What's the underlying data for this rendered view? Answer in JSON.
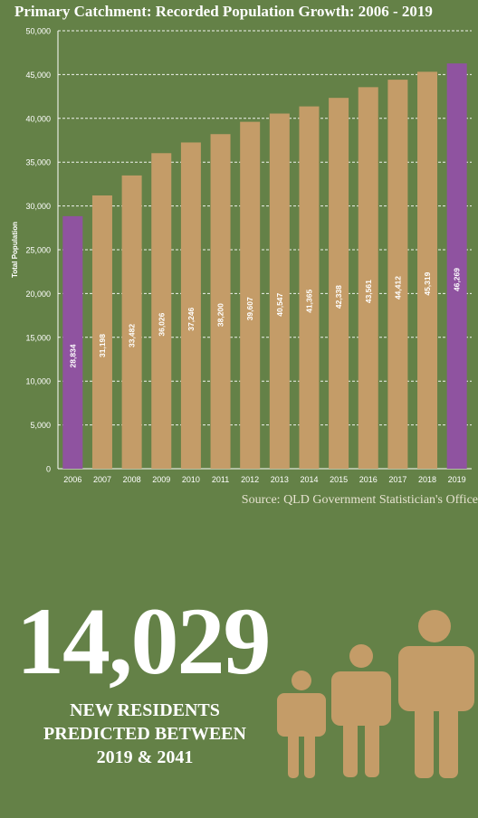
{
  "title": "Primary Catchment: Recorded Population Growth: 2006 - 2019",
  "source": "Source: QLD Government Statistician's Office",
  "highlight": {
    "number": "14,029",
    "caption_lines": [
      "NEW RESIDENTS",
      "PREDICTED BETWEEN",
      "2019 & 2041"
    ]
  },
  "colors": {
    "background": "#648147",
    "bar": "#c49c68",
    "bar_highlight": "#8f53a0",
    "people": "#c49c68"
  },
  "icons": [
    "person-small-icon",
    "person-medium-icon",
    "person-large-icon"
  ],
  "chart_data": {
    "type": "bar",
    "title": "Primary Catchment: Recorded Population Growth: 2006 - 2019",
    "xlabel": "",
    "ylabel": "Total Population",
    "ylim": [
      0,
      50000
    ],
    "yticks": [
      "0",
      "5,000",
      "10,000",
      "15,000",
      "20,000",
      "25,000",
      "30,000",
      "35,000",
      "40,000",
      "45,000",
      "50,000"
    ],
    "grid": true,
    "categories": [
      "2006",
      "2007",
      "2008",
      "2009",
      "2010",
      "2011",
      "2012",
      "2013",
      "2014",
      "2015",
      "2016",
      "2017",
      "2018",
      "2019"
    ],
    "values": [
      28834,
      31198,
      33482,
      36026,
      37246,
      38200,
      39607,
      40547,
      41365,
      42338,
      43561,
      44412,
      45319,
      46269
    ],
    "value_labels": [
      "28,834",
      "31,198",
      "33,482",
      "36,026",
      "37,246",
      "38,200",
      "39,607",
      "40,547",
      "41,365",
      "42,338",
      "43,561",
      "44,412",
      "45,319",
      "46,269"
    ],
    "highlighted_categories": [
      "2006",
      "2019"
    ]
  }
}
